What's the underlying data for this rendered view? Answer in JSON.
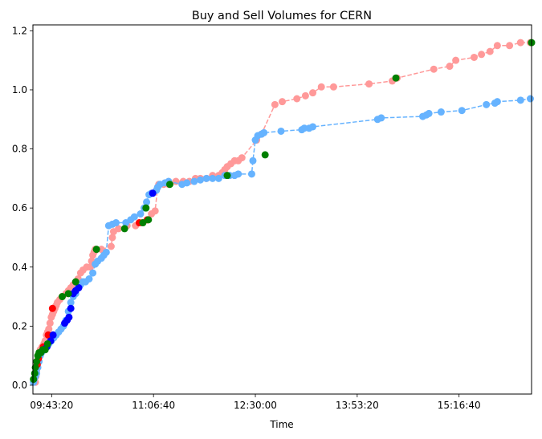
{
  "chart_data": {
    "type": "scatter",
    "title": "Buy and Sell Volumes for CERN",
    "xlabel": "Time",
    "ylabel": "",
    "xlim": [
      "09:28:00",
      "16:16:00"
    ],
    "ylim": [
      -0.03,
      1.22
    ],
    "x_ticks": [
      "09:43:20",
      "11:06:40",
      "12:30:00",
      "13:53:20",
      "15:16:40"
    ],
    "y_ticks": [
      "0.0",
      "0.2",
      "0.4",
      "0.6",
      "0.8",
      "1.0",
      "1.2"
    ],
    "grid": false,
    "legend": "none",
    "series": [
      {
        "color": "#ff9999",
        "line_style": "dashed",
        "points": [
          [
            "09:30:00",
            0.01
          ],
          [
            "09:30:30",
            0.03
          ],
          [
            "09:31:00",
            0.05
          ],
          [
            "09:31:30",
            0.07
          ],
          [
            "09:32:00",
            0.08
          ],
          [
            "09:33:00",
            0.1
          ],
          [
            "09:34:00",
            0.12
          ],
          [
            "09:35:30",
            0.13
          ],
          [
            "09:37:00",
            0.14
          ],
          [
            "09:38:00",
            0.15
          ],
          [
            "09:39:00",
            0.17
          ],
          [
            "09:40:00",
            0.18
          ],
          [
            "09:41:00",
            0.19
          ],
          [
            "09:42:00",
            0.21
          ],
          [
            "09:43:00",
            0.23
          ],
          [
            "09:44:00",
            0.24
          ],
          [
            "09:45:00",
            0.25
          ],
          [
            "09:46:00",
            0.26
          ],
          [
            "09:47:00",
            0.27
          ],
          [
            "09:48:00",
            0.28
          ],
          [
            "09:50:00",
            0.29
          ],
          [
            "09:52:00",
            0.3
          ],
          [
            "09:55:00",
            0.31
          ],
          [
            "09:57:00",
            0.32
          ],
          [
            "09:59:00",
            0.33
          ],
          [
            "10:01:00",
            0.34
          ],
          [
            "10:03:00",
            0.35
          ],
          [
            "10:05:00",
            0.36
          ],
          [
            "10:07:00",
            0.38
          ],
          [
            "10:09:00",
            0.39
          ],
          [
            "10:12:00",
            0.4
          ],
          [
            "10:15:00",
            0.4
          ],
          [
            "10:16:00",
            0.42
          ],
          [
            "10:17:00",
            0.44
          ],
          [
            "10:18:00",
            0.45
          ],
          [
            "10:19:00",
            0.46
          ],
          [
            "10:24:00",
            0.46
          ],
          [
            "10:32:00",
            0.47
          ],
          [
            "10:33:00",
            0.5
          ],
          [
            "10:34:00",
            0.52
          ],
          [
            "10:38:00",
            0.53
          ],
          [
            "10:45:00",
            0.54
          ],
          [
            "10:52:00",
            0.54
          ],
          [
            "10:57:00",
            0.55
          ],
          [
            "11:02:00",
            0.56
          ],
          [
            "11:05:00",
            0.58
          ],
          [
            "11:08:00",
            0.59
          ],
          [
            "11:10:00",
            0.67
          ],
          [
            "11:11:00",
            0.68
          ],
          [
            "11:15:00",
            0.68
          ],
          [
            "11:19:00",
            0.68
          ],
          [
            "11:25:00",
            0.69
          ],
          [
            "11:31:00",
            0.69
          ],
          [
            "11:36:00",
            0.69
          ],
          [
            "11:41:00",
            0.7
          ],
          [
            "11:45:00",
            0.7
          ],
          [
            "11:50:00",
            0.7
          ],
          [
            "11:55:00",
            0.71
          ],
          [
            "12:00:00",
            0.71
          ],
          [
            "12:03:00",
            0.72
          ],
          [
            "12:05:00",
            0.73
          ],
          [
            "12:07:00",
            0.74
          ],
          [
            "12:10:00",
            0.75
          ],
          [
            "12:13:00",
            0.76
          ],
          [
            "12:16:00",
            0.76
          ],
          [
            "12:19:00",
            0.77
          ],
          [
            "12:31:00",
            0.83
          ],
          [
            "12:35:00",
            0.85
          ],
          [
            "12:46:00",
            0.95
          ],
          [
            "12:52:00",
            0.96
          ],
          [
            "13:04:00",
            0.97
          ],
          [
            "13:11:00",
            0.98
          ],
          [
            "13:17:00",
            0.99
          ],
          [
            "13:24:00",
            1.01
          ],
          [
            "13:34:00",
            1.01
          ],
          [
            "14:03:00",
            1.02
          ],
          [
            "14:22:00",
            1.03
          ],
          [
            "14:26:00",
            1.04
          ],
          [
            "14:56:00",
            1.07
          ],
          [
            "15:09:00",
            1.08
          ],
          [
            "15:14:00",
            1.1
          ],
          [
            "15:29:00",
            1.11
          ],
          [
            "15:35:00",
            1.12
          ],
          [
            "15:42:00",
            1.13
          ],
          [
            "15:48:00",
            1.15
          ],
          [
            "15:58:00",
            1.15
          ],
          [
            "16:07:00",
            1.16
          ],
          [
            "16:15:00",
            1.16
          ]
        ]
      },
      {
        "color": "#66b3ff",
        "line_style": "dashed",
        "points": [
          [
            "09:28:30",
            0.01
          ],
          [
            "09:29:00",
            0.02
          ],
          [
            "09:30:00",
            0.03
          ],
          [
            "09:31:00",
            0.04
          ],
          [
            "09:32:00",
            0.06
          ],
          [
            "09:33:00",
            0.08
          ],
          [
            "09:34:00",
            0.1
          ],
          [
            "09:35:00",
            0.11
          ],
          [
            "09:37:00",
            0.12
          ],
          [
            "09:39:00",
            0.13
          ],
          [
            "09:41:00",
            0.14
          ],
          [
            "09:43:00",
            0.15
          ],
          [
            "09:45:00",
            0.16
          ],
          [
            "09:47:00",
            0.17
          ],
          [
            "09:49:00",
            0.18
          ],
          [
            "09:51:00",
            0.19
          ],
          [
            "09:53:00",
            0.2
          ],
          [
            "09:55:00",
            0.22
          ],
          [
            "09:57:00",
            0.25
          ],
          [
            "09:59:00",
            0.28
          ],
          [
            "10:01:00",
            0.3
          ],
          [
            "10:03:00",
            0.31
          ],
          [
            "10:05:00",
            0.33
          ],
          [
            "10:07:00",
            0.34
          ],
          [
            "10:09:00",
            0.35
          ],
          [
            "10:11:00",
            0.35
          ],
          [
            "10:14:00",
            0.36
          ],
          [
            "10:17:00",
            0.38
          ],
          [
            "10:19:00",
            0.41
          ],
          [
            "10:21:00",
            0.42
          ],
          [
            "10:24:00",
            0.43
          ],
          [
            "10:26:00",
            0.44
          ],
          [
            "10:28:00",
            0.45
          ],
          [
            "10:30:00",
            0.54
          ],
          [
            "10:33:00",
            0.545
          ],
          [
            "10:36:00",
            0.55
          ],
          [
            "10:44:00",
            0.55
          ],
          [
            "10:48:00",
            0.56
          ],
          [
            "10:51:00",
            0.57
          ],
          [
            "10:56:00",
            0.58
          ],
          [
            "10:59:00",
            0.6
          ],
          [
            "11:01:00",
            0.62
          ],
          [
            "11:03:00",
            0.645
          ],
          [
            "11:05:00",
            0.65
          ],
          [
            "11:09:00",
            0.66
          ],
          [
            "11:10:00",
            0.67
          ],
          [
            "11:12:00",
            0.68
          ],
          [
            "11:16:00",
            0.685
          ],
          [
            "11:19:00",
            0.69
          ],
          [
            "11:30:00",
            0.68
          ],
          [
            "11:34:00",
            0.685
          ],
          [
            "11:40:00",
            0.69
          ],
          [
            "11:45:00",
            0.695
          ],
          [
            "11:50:00",
            0.7
          ],
          [
            "11:55:00",
            0.7
          ],
          [
            "12:00:00",
            0.7
          ],
          [
            "12:05:00",
            0.71
          ],
          [
            "12:09:00",
            0.71
          ],
          [
            "12:13:00",
            0.71
          ],
          [
            "12:16:00",
            0.715
          ],
          [
            "12:27:00",
            0.715
          ],
          [
            "12:28:00",
            0.76
          ],
          [
            "12:30:00",
            0.83
          ],
          [
            "12:32:00",
            0.845
          ],
          [
            "12:35:00",
            0.85
          ],
          [
            "12:37:00",
            0.855
          ],
          [
            "12:51:00",
            0.86
          ],
          [
            "13:08:00",
            0.865
          ],
          [
            "13:10:00",
            0.87
          ],
          [
            "13:14:00",
            0.87
          ],
          [
            "13:17:00",
            0.875
          ],
          [
            "14:10:00",
            0.9
          ],
          [
            "14:13:00",
            0.905
          ],
          [
            "14:47:00",
            0.91
          ],
          [
            "14:50:00",
            0.915
          ],
          [
            "14:52:00",
            0.92
          ],
          [
            "15:02:00",
            0.925
          ],
          [
            "15:19:00",
            0.93
          ],
          [
            "15:39:00",
            0.95
          ],
          [
            "15:46:00",
            0.955
          ],
          [
            "15:48:00",
            0.96
          ],
          [
            "16:07:00",
            0.965
          ],
          [
            "16:15:00",
            0.97
          ]
        ]
      },
      {
        "color": "#ff0000",
        "line_style": "none",
        "points": [
          [
            "09:31:30",
            0.07
          ],
          [
            "09:32:30",
            0.09
          ],
          [
            "09:36:30",
            0.13
          ],
          [
            "09:40:30",
            0.17
          ],
          [
            "09:44:00",
            0.26
          ],
          [
            "10:55:00",
            0.55
          ],
          [
            "11:01:30",
            0.56
          ]
        ]
      },
      {
        "color": "#0000ff",
        "line_style": "none",
        "points": [
          [
            "09:39:30",
            0.13
          ],
          [
            "09:42:30",
            0.15
          ],
          [
            "09:44:30",
            0.17
          ],
          [
            "09:54:00",
            0.21
          ],
          [
            "09:56:00",
            0.22
          ],
          [
            "09:57:30",
            0.23
          ],
          [
            "09:59:00",
            0.26
          ],
          [
            "10:01:00",
            0.31
          ],
          [
            "10:03:00",
            0.32
          ],
          [
            "10:05:30",
            0.33
          ],
          [
            "11:06:00",
            0.65
          ]
        ]
      },
      {
        "color": "#008000",
        "line_style": "none",
        "points": [
          [
            "09:28:30",
            0.02
          ],
          [
            "09:29:30",
            0.04
          ],
          [
            "09:30:00",
            0.06
          ],
          [
            "09:31:00",
            0.08
          ],
          [
            "09:32:00",
            0.1
          ],
          [
            "09:33:00",
            0.11
          ],
          [
            "09:34:30",
            0.11
          ],
          [
            "09:36:00",
            0.12
          ],
          [
            "09:38:00",
            0.12
          ],
          [
            "09:40:00",
            0.14
          ],
          [
            "09:52:00",
            0.3
          ],
          [
            "09:57:00",
            0.31
          ],
          [
            "10:03:00",
            0.35
          ],
          [
            "10:20:00",
            0.46
          ],
          [
            "10:43:00",
            0.53
          ],
          [
            "10:58:00",
            0.55
          ],
          [
            "11:00:30",
            0.6
          ],
          [
            "11:02:30",
            0.56
          ],
          [
            "11:20:00",
            0.68
          ],
          [
            "12:07:00",
            0.71
          ],
          [
            "12:38:00",
            0.78
          ],
          [
            "14:25:00",
            1.04
          ],
          [
            "16:16:00",
            1.16
          ]
        ]
      }
    ]
  }
}
